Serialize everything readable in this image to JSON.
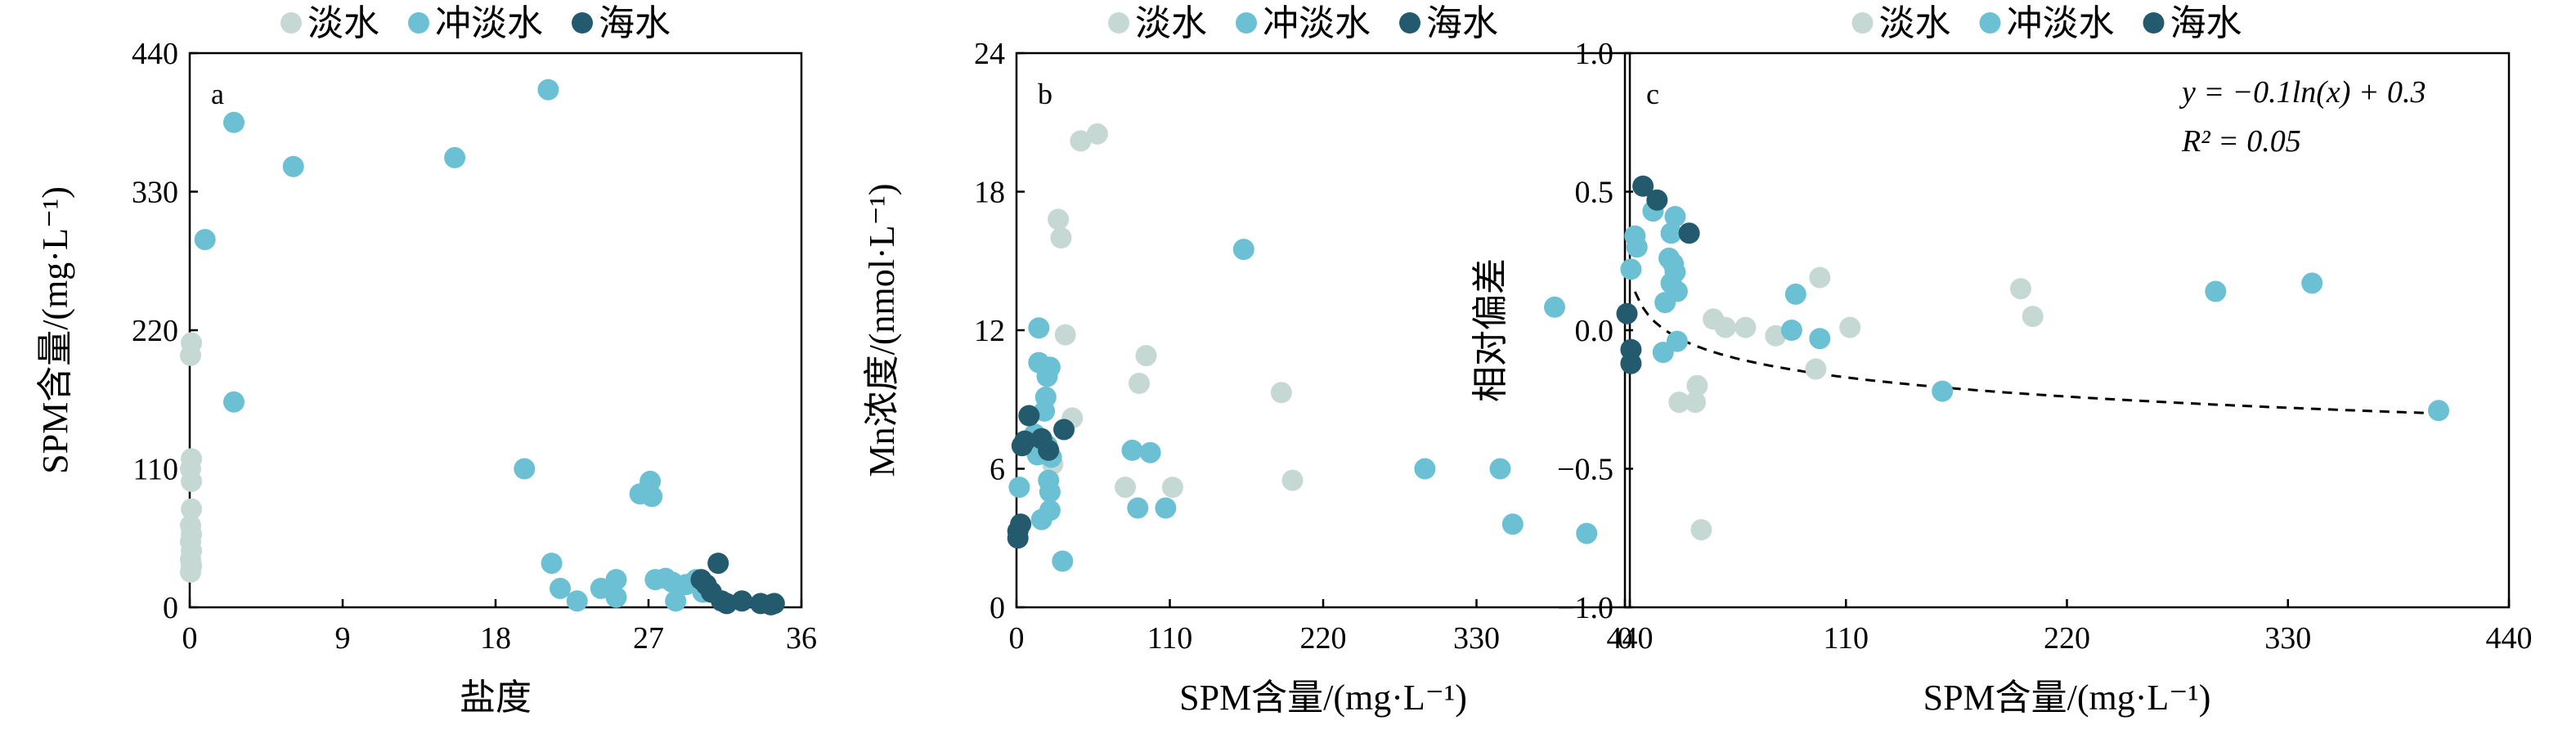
{
  "colors": {
    "淡水": "#c5d8d3",
    "冲淡水": "#6cc0d4",
    "海水": "#245a6e"
  },
  "chart_data": [
    {
      "type": "scatter",
      "panel_label": "a",
      "xlabel": "盐度",
      "ylabel": "SPM含量/(mg·L⁻¹)",
      "xlim": [
        0,
        36
      ],
      "ylim": [
        0,
        440
      ],
      "xticks": [
        "0",
        "9",
        "18",
        "27",
        "36"
      ],
      "yticks": [
        "0",
        "110",
        "220",
        "330",
        "440"
      ],
      "legend": [
        "淡水",
        "冲淡水",
        "海水"
      ],
      "series": [
        {
          "name": "淡水",
          "points": [
            [
              0.1,
              210
            ],
            [
              0.05,
              200
            ],
            [
              0.1,
              118
            ],
            [
              0.05,
              110
            ],
            [
              0.1,
              100
            ],
            [
              0.1,
              78
            ],
            [
              0.05,
              65
            ],
            [
              0.1,
              58
            ],
            [
              0.05,
              52
            ],
            [
              0.1,
              45
            ],
            [
              0.05,
              38
            ],
            [
              0.1,
              33
            ],
            [
              0.05,
              28
            ]
          ]
        },
        {
          "name": "冲淡水",
          "points": [
            [
              0.9,
              292
            ],
            [
              2.6,
              385
            ],
            [
              2.6,
              163
            ],
            [
              6.1,
              350
            ],
            [
              15.6,
              357
            ],
            [
              19.7,
              110
            ],
            [
              21.1,
              411
            ],
            [
              21.3,
              35
            ],
            [
              21.8,
              15
            ],
            [
              22.8,
              5
            ],
            [
              24.2,
              15
            ],
            [
              25.1,
              22
            ],
            [
              25.1,
              8
            ],
            [
              26.5,
              90
            ],
            [
              27.1,
              100
            ],
            [
              27.2,
              88
            ],
            [
              27.4,
              22
            ],
            [
              28.0,
              23
            ],
            [
              28.4,
              20
            ],
            [
              28.6,
              5
            ],
            [
              29.2,
              18
            ],
            [
              29.8,
              22
            ],
            [
              30.2,
              12
            ]
          ]
        },
        {
          "name": "海水",
          "points": [
            [
              30.1,
              22
            ],
            [
              30.4,
              18
            ],
            [
              30.7,
              12
            ],
            [
              31.1,
              35
            ],
            [
              31.3,
              5
            ],
            [
              31.6,
              3
            ],
            [
              32.5,
              5
            ],
            [
              33.6,
              3
            ],
            [
              34.2,
              2
            ],
            [
              34.4,
              3
            ]
          ]
        }
      ]
    },
    {
      "type": "scatter",
      "panel_label": "b",
      "xlabel": "SPM含量/(mg·L⁻¹)",
      "ylabel": "Mn浓度/(nmol·L⁻¹)",
      "xlim": [
        0,
        440
      ],
      "ylim": [
        0,
        24
      ],
      "xticks": [
        "0",
        "110",
        "220",
        "330",
        "440"
      ],
      "yticks": [
        "0",
        "6",
        "12",
        "18",
        "24"
      ],
      "legend": [
        "淡水",
        "冲淡水",
        "海水"
      ],
      "series": [
        {
          "name": "淡水",
          "points": [
            [
              46,
              20.2
            ],
            [
              58,
              20.5
            ],
            [
              30,
              16.8
            ],
            [
              32,
              16.0
            ],
            [
              35,
              11.8
            ],
            [
              93,
              10.9
            ],
            [
              88,
              9.7
            ],
            [
              40,
              8.2
            ],
            [
              26,
              6.2
            ],
            [
              78,
              5.2
            ],
            [
              112,
              5.2
            ],
            [
              198,
              5.5
            ],
            [
              190,
              9.3
            ]
          ]
        },
        {
          "name": "冲淡水",
          "points": [
            [
              2,
              5.2
            ],
            [
              13,
              7.5
            ],
            [
              15,
              6.6
            ],
            [
              16,
              12.1
            ],
            [
              16,
              10.6
            ],
            [
              18,
              3.8
            ],
            [
              20,
              8.5
            ],
            [
              21,
              9.1
            ],
            [
              22,
              10.0
            ],
            [
              22,
              7.0
            ],
            [
              23,
              5.5
            ],
            [
              24,
              5.0
            ],
            [
              24,
              4.2
            ],
            [
              24,
              10.4
            ],
            [
              25,
              6.5
            ],
            [
              33,
              2.0
            ],
            [
              83,
              6.8
            ],
            [
              87,
              4.3
            ],
            [
              96,
              6.7
            ],
            [
              107,
              4.3
            ],
            [
              163,
              15.5
            ],
            [
              293,
              6.0
            ],
            [
              347,
              6.0
            ],
            [
              356,
              3.6
            ],
            [
              386,
              13.0
            ],
            [
              409,
              3.2
            ]
          ]
        },
        {
          "name": "海水",
          "points": [
            [
              1,
              3.3
            ],
            [
              1,
              3.0
            ],
            [
              3,
              3.6
            ],
            [
              4,
              7.0
            ],
            [
              6,
              7.2
            ],
            [
              9,
              8.3
            ],
            [
              18,
              7.3
            ],
            [
              23,
              6.8
            ],
            [
              34,
              7.7
            ]
          ]
        }
      ]
    },
    {
      "type": "scatter",
      "panel_label": "c",
      "xlabel": "SPM含量/(mg·L⁻¹)",
      "ylabel": "相对偏差",
      "xlim": [
        0,
        440
      ],
      "ylim": [
        -1.0,
        1.0
      ],
      "xticks": [
        "0",
        "110",
        "220",
        "330",
        "440"
      ],
      "yticks": [
        "−1.0",
        "−0.5",
        "0.0",
        "0.5",
        "1.0"
      ],
      "legend": [
        "淡水",
        "冲淡水",
        "海水"
      ],
      "annotation": {
        "equation": "y = −0.1ln(x) + 0.3",
        "r2": "R² = 0.05"
      },
      "fit": {
        "a": -0.1,
        "b": 0.3,
        "x_range": [
          5,
          400
        ]
      },
      "series": [
        {
          "name": "淡水",
          "points": [
            [
              27,
              -0.26
            ],
            [
              36,
              -0.2
            ],
            [
              35,
              -0.26
            ],
            [
              38,
              -0.72
            ],
            [
              44,
              0.04
            ],
            [
              50,
              0.01
            ],
            [
              60,
              0.01
            ],
            [
              75,
              -0.02
            ],
            [
              95,
              -0.14
            ],
            [
              97,
              0.19
            ],
            [
              112,
              0.01
            ],
            [
              197,
              0.15
            ],
            [
              203,
              0.05
            ]
          ]
        },
        {
          "name": "冲淡水",
          "points": [
            [
              3,
              0.22
            ],
            [
              5,
              0.34
            ],
            [
              6,
              0.3
            ],
            [
              14,
              0.43
            ],
            [
              19,
              -0.08
            ],
            [
              20,
              0.1
            ],
            [
              22,
              0.26
            ],
            [
              23,
              0.35
            ],
            [
              23,
              0.17
            ],
            [
              24,
              0.24
            ],
            [
              25,
              0.21
            ],
            [
              25,
              0.41
            ],
            [
              26,
              0.14
            ],
            [
              26,
              -0.04
            ],
            [
              85,
              0.13
            ],
            [
              83,
              0.0
            ],
            [
              97,
              -0.03
            ],
            [
              158,
              -0.22
            ],
            [
              294,
              0.14
            ],
            [
              342,
              0.17
            ],
            [
              405,
              -0.29
            ]
          ]
        },
        {
          "name": "海水",
          "points": [
            [
              1,
              0.06
            ],
            [
              3,
              -0.07
            ],
            [
              3,
              -0.12
            ],
            [
              9,
              0.52
            ],
            [
              16,
              0.47
            ],
            [
              32,
              0.35
            ]
          ]
        }
      ]
    }
  ]
}
